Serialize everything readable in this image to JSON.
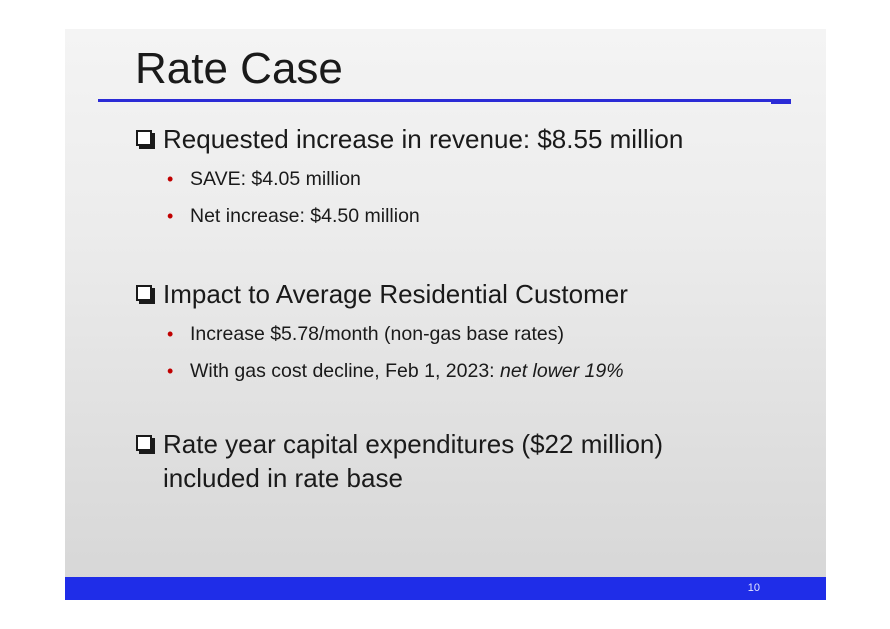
{
  "slide": {
    "title": "Rate Case",
    "accent_color": "#2b2bd6",
    "footer_color": "#1f2de8",
    "page_number": "10"
  },
  "sections": [
    {
      "icon": "checkbox-icon",
      "heading": "Requested increase in revenue: $8.55 million",
      "bullets": [
        "SAVE: $4.05 million",
        "Net increase: $4.50 million"
      ]
    },
    {
      "icon": "checkbox-icon",
      "heading": "Impact to Average Residential Customer",
      "bullets": [
        "Increase $5.78/month (non-gas base rates)"
      ],
      "bullet_with_emphasis": {
        "plain": "With gas cost decline, Feb 1, 2023: ",
        "emphasis": "net lower 19%"
      }
    },
    {
      "icon": "checkbox-icon",
      "heading_line1": "Rate year capital expenditures ($22 million)",
      "heading_line2": "included in rate base"
    }
  ],
  "bullet_glyph": "•",
  "bullet_color": "#c00000"
}
